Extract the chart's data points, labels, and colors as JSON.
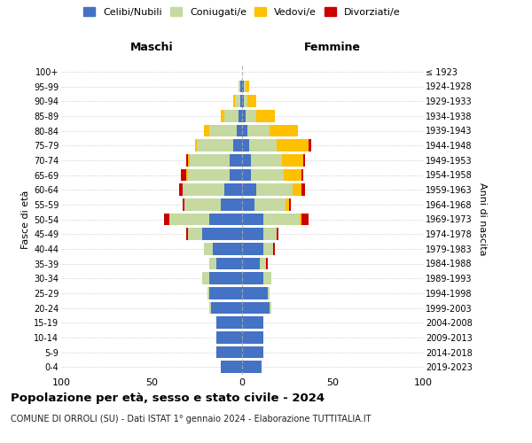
{
  "age_groups": [
    "0-4",
    "5-9",
    "10-14",
    "15-19",
    "20-24",
    "25-29",
    "30-34",
    "35-39",
    "40-44",
    "45-49",
    "50-54",
    "55-59",
    "60-64",
    "65-69",
    "70-74",
    "75-79",
    "80-84",
    "85-89",
    "90-94",
    "95-99",
    "100+"
  ],
  "birth_years": [
    "2019-2023",
    "2014-2018",
    "2009-2013",
    "2004-2008",
    "1999-2003",
    "1994-1998",
    "1989-1993",
    "1984-1988",
    "1979-1983",
    "1974-1978",
    "1969-1973",
    "1964-1968",
    "1959-1963",
    "1954-1958",
    "1949-1953",
    "1944-1948",
    "1939-1943",
    "1934-1938",
    "1929-1933",
    "1924-1928",
    "≤ 1923"
  ],
  "maschi": {
    "celibi": [
      12,
      14,
      14,
      14,
      17,
      18,
      18,
      14,
      16,
      22,
      18,
      12,
      10,
      7,
      7,
      5,
      3,
      2,
      1,
      1,
      0
    ],
    "coniugati": [
      0,
      0,
      0,
      0,
      1,
      1,
      4,
      4,
      5,
      8,
      22,
      20,
      23,
      23,
      22,
      20,
      15,
      8,
      3,
      1,
      0
    ],
    "vedovi": [
      0,
      0,
      0,
      0,
      0,
      0,
      0,
      0,
      0,
      0,
      0,
      0,
      0,
      1,
      1,
      1,
      3,
      2,
      1,
      0,
      0
    ],
    "divorziati": [
      0,
      0,
      0,
      0,
      0,
      0,
      0,
      0,
      0,
      1,
      3,
      1,
      2,
      3,
      1,
      0,
      0,
      0,
      0,
      0,
      0
    ]
  },
  "femmine": {
    "nubili": [
      11,
      12,
      12,
      12,
      15,
      14,
      12,
      10,
      12,
      12,
      12,
      7,
      8,
      5,
      5,
      4,
      3,
      2,
      1,
      1,
      0
    ],
    "coniugate": [
      0,
      0,
      0,
      0,
      1,
      1,
      4,
      3,
      5,
      7,
      20,
      17,
      20,
      18,
      17,
      15,
      12,
      6,
      2,
      1,
      0
    ],
    "vedove": [
      0,
      0,
      0,
      0,
      0,
      0,
      0,
      0,
      0,
      0,
      1,
      2,
      5,
      10,
      12,
      18,
      16,
      10,
      5,
      2,
      0
    ],
    "divorziate": [
      0,
      0,
      0,
      0,
      0,
      0,
      0,
      1,
      1,
      1,
      4,
      1,
      2,
      1,
      1,
      1,
      0,
      0,
      0,
      0,
      0
    ]
  },
  "colors": {
    "celibi": "#4472C4",
    "coniugati": "#c5d9a0",
    "vedovi": "#ffc000",
    "divorziati": "#cc0000"
  },
  "title": "Popolazione per età, sesso e stato civile - 2024",
  "subtitle": "COMUNE DI ORROLI (SU) - Dati ISTAT 1° gennaio 2024 - Elaborazione TUTTITALIA.IT",
  "maschi_label": "Maschi",
  "femmine_label": "Femmine",
  "ylabel_left": "Fasce di età",
  "ylabel_right": "Anni di nascita",
  "xlim": 100,
  "background_color": "#ffffff",
  "grid_color": "#cccccc",
  "legend_labels": [
    "Celibi/Nubili",
    "Coniugati/e",
    "Vedovi/e",
    "Divorziati/e"
  ]
}
